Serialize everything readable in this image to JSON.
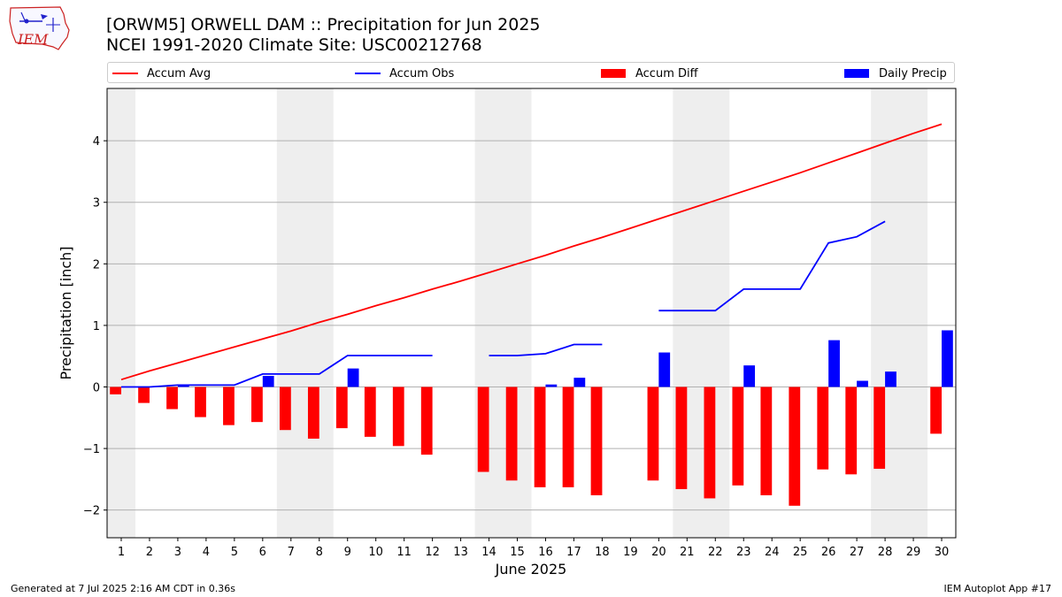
{
  "header": {
    "title_line1": "[ORWM5] ORWELL DAM :: Precipitation for Jun 2025",
    "title_line2": "NCEI 1991-2020 Climate Site: USC00212768"
  },
  "logo": {
    "text": "IEM"
  },
  "footer": {
    "generated": "Generated at 7 Jul 2025 2:16 AM CDT in 0.36s",
    "app": "IEM Autoplot App #17"
  },
  "chart_data": {
    "type": "bar",
    "xlabel": "June 2025",
    "ylabel": "Precipitation [inch]",
    "xlim": [
      0.5,
      30.5
    ],
    "ylim": [
      -2.45,
      4.85
    ],
    "yticks": [
      -2,
      -1,
      0,
      1,
      2,
      3,
      4
    ],
    "ytick_labels": [
      "−2",
      "−1",
      "0",
      "1",
      "2",
      "3",
      "4"
    ],
    "grid": "horizontal",
    "legend_position": "top",
    "x": [
      1,
      2,
      3,
      4,
      5,
      6,
      7,
      8,
      9,
      10,
      11,
      12,
      13,
      14,
      15,
      16,
      17,
      18,
      19,
      20,
      21,
      22,
      23,
      24,
      25,
      26,
      27,
      28,
      29,
      30
    ],
    "weekend_bands": [
      [
        0.5,
        1.5
      ],
      [
        6.5,
        8.5
      ],
      [
        13.5,
        15.5
      ],
      [
        20.5,
        22.5
      ],
      [
        27.5,
        29.5
      ]
    ],
    "series": [
      {
        "name": "Accum Avg",
        "kind": "line",
        "color": "#ff0000",
        "values": [
          0.12,
          0.26,
          0.39,
          0.52,
          0.65,
          0.78,
          0.91,
          1.05,
          1.18,
          1.32,
          1.45,
          1.59,
          1.72,
          1.86,
          2.0,
          2.14,
          2.29,
          2.43,
          2.58,
          2.73,
          2.88,
          3.03,
          3.18,
          3.33,
          3.48,
          3.64,
          3.8,
          3.96,
          4.12,
          4.27
        ]
      },
      {
        "name": "Accum Obs",
        "kind": "line",
        "color": "#0000ff",
        "values": [
          0.0,
          0.0,
          0.03,
          0.03,
          0.03,
          0.21,
          0.21,
          0.21,
          0.51,
          0.51,
          0.51,
          0.51,
          null,
          0.51,
          0.51,
          0.54,
          0.69,
          0.69,
          null,
          1.24,
          1.24,
          1.24,
          1.59,
          1.59,
          1.59,
          2.34,
          2.44,
          2.69,
          null,
          null
        ]
      },
      {
        "name": "Accum Diff",
        "kind": "bar",
        "color": "#ff0000",
        "values": [
          -0.12,
          -0.26,
          -0.36,
          -0.49,
          -0.62,
          -0.57,
          -0.7,
          -0.84,
          -0.67,
          -0.81,
          -0.96,
          -1.1,
          null,
          -1.38,
          -1.52,
          -1.63,
          -1.63,
          -1.76,
          null,
          -1.52,
          -1.66,
          -1.81,
          -1.6,
          -1.76,
          -1.93,
          -1.34,
          -1.42,
          -1.33,
          null,
          -0.76
        ]
      },
      {
        "name": "Daily Precip",
        "kind": "bar",
        "color": "#0000ff",
        "values": [
          0,
          0,
          0.03,
          0,
          0,
          0.18,
          0,
          0,
          0.3,
          0,
          0,
          0,
          0,
          0,
          0,
          0.04,
          0.15,
          0,
          0,
          0.56,
          0,
          0,
          0.35,
          0,
          0,
          0.76,
          0.1,
          0.25,
          0,
          0.92
        ]
      }
    ]
  }
}
